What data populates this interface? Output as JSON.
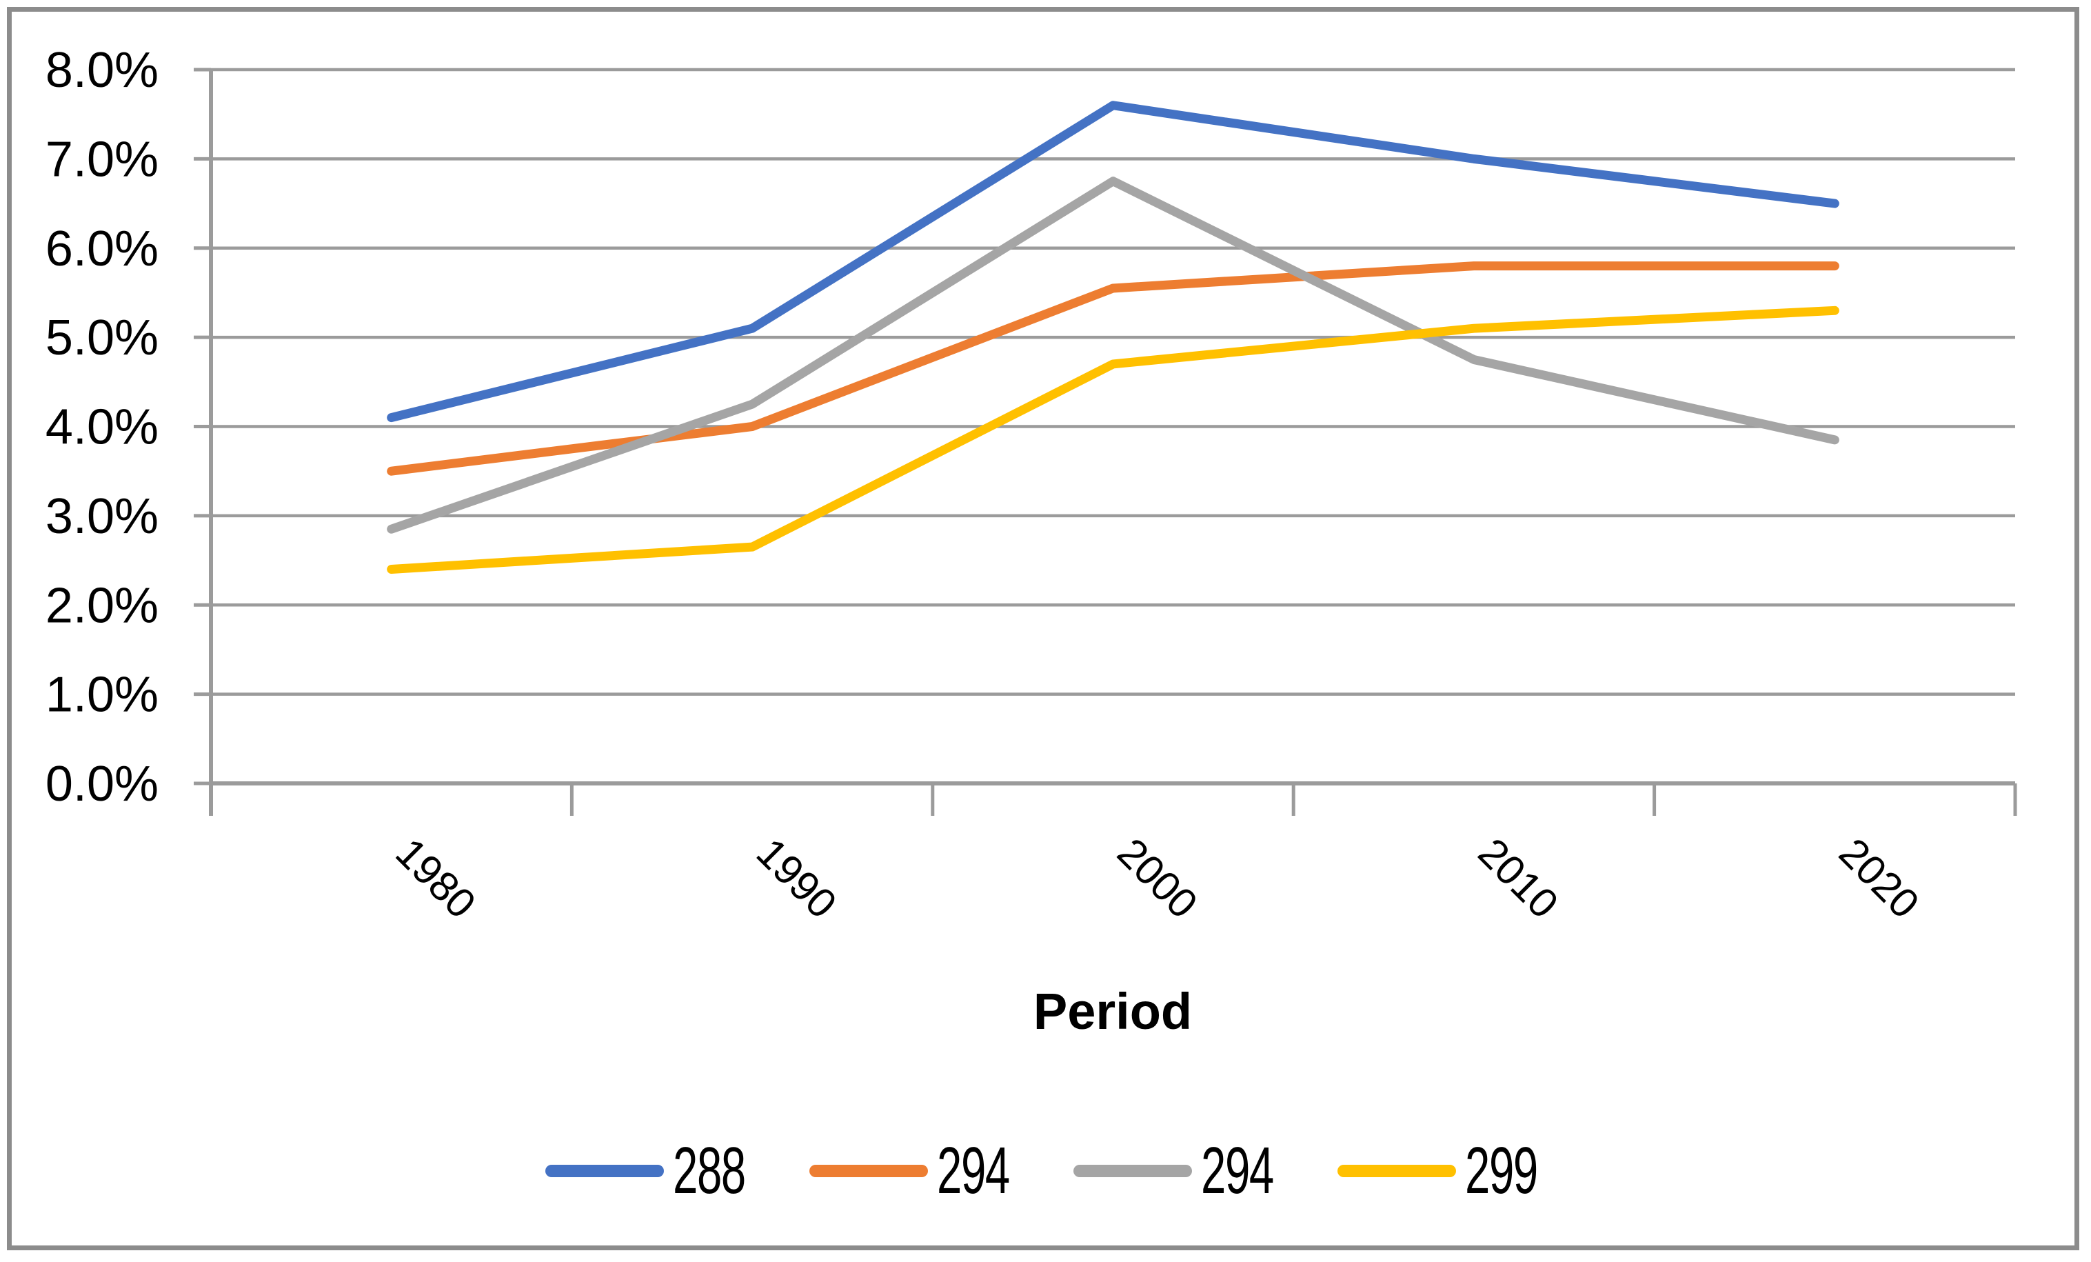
{
  "chart_data": {
    "type": "line",
    "title": "",
    "xlabel": "Period",
    "ylabel": "",
    "categories": [
      "1980",
      "1990",
      "2000",
      "2010",
      "2020"
    ],
    "series": [
      {
        "name": "288",
        "color": "#4472C4",
        "values": [
          4.1,
          5.1,
          7.6,
          7.0,
          6.5
        ]
      },
      {
        "name": "294",
        "color": "#ED7D31",
        "values": [
          3.5,
          4.0,
          5.55,
          5.8,
          5.8
        ]
      },
      {
        "name": "294",
        "color": "#A5A5A5",
        "values": [
          2.85,
          4.25,
          6.75,
          4.75,
          3.85
        ]
      },
      {
        "name": "299",
        "color": "#FFC000",
        "values": [
          2.4,
          2.65,
          4.7,
          5.1,
          5.3
        ]
      }
    ],
    "y_tick_labels": [
      "0.0%",
      "1.0%",
      "2.0%",
      "3.0%",
      "4.0%",
      "5.0%",
      "6.0%",
      "7.0%",
      "8.0%"
    ],
    "ylim": [
      0,
      8
    ],
    "y_tick_step": 1,
    "grid": true,
    "legend_position": "bottom",
    "gridline_color": "#9B9B9B",
    "axis_color": "#9B9B9B",
    "border_color": "#8C8C8C",
    "text_color": "#000000",
    "background_color": "#FFFFFF"
  }
}
